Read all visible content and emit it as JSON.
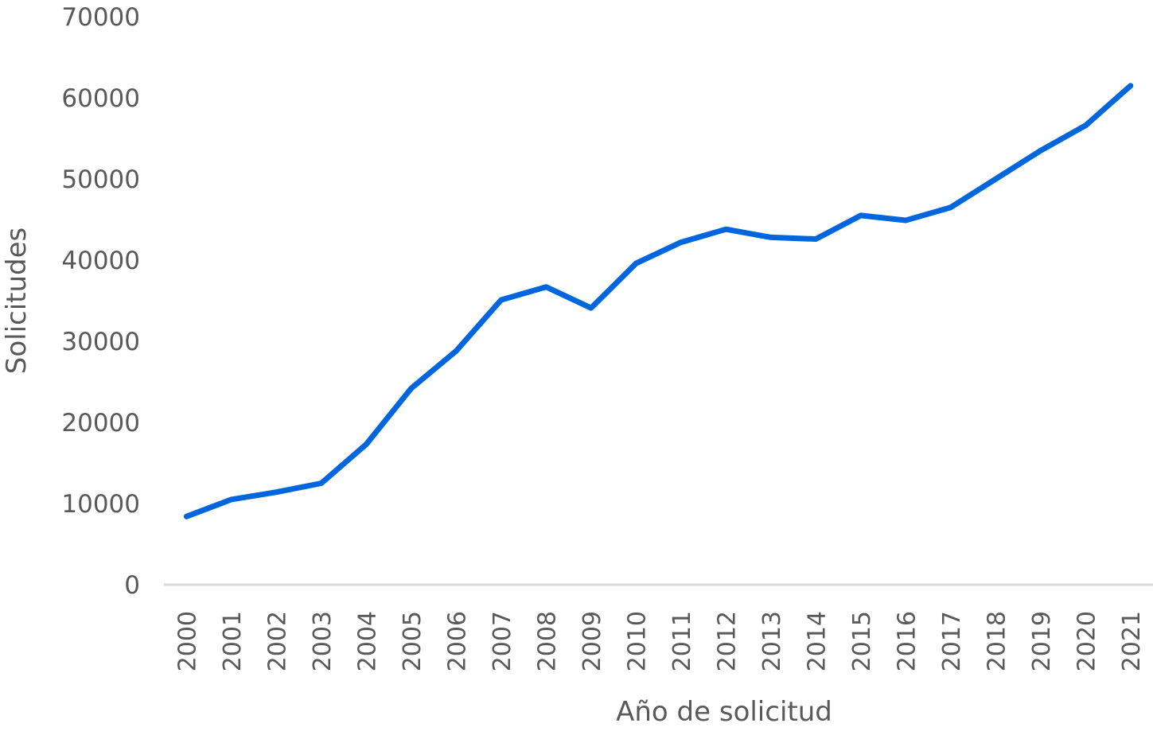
{
  "chart_data": {
    "type": "line",
    "title": "",
    "xlabel": "Año de solicitud",
    "ylabel": "Solicitudes",
    "ylim": [
      0,
      70000
    ],
    "yticks": [
      "0",
      "10000",
      "20000",
      "30000",
      "40000",
      "50000",
      "60000",
      "70000"
    ],
    "grid": false,
    "legend": "none",
    "categories": [
      "2000",
      "2001",
      "2002",
      "2003",
      "2004",
      "2005",
      "2006",
      "2007",
      "2008",
      "2009",
      "2010",
      "2011",
      "2012",
      "2013",
      "2014",
      "2015",
      "2016",
      "2017",
      "2018",
      "2019",
      "2020",
      "2021"
    ],
    "series": [
      {
        "name": "Solicitudes",
        "color": "#0066dd",
        "values": [
          8400,
          10500,
          11400,
          12500,
          17300,
          24200,
          28800,
          35100,
          36700,
          34100,
          39600,
          42200,
          43800,
          42800,
          42600,
          45500,
          44900,
          46500,
          50000,
          53500,
          56600,
          61500
        ]
      }
    ]
  }
}
